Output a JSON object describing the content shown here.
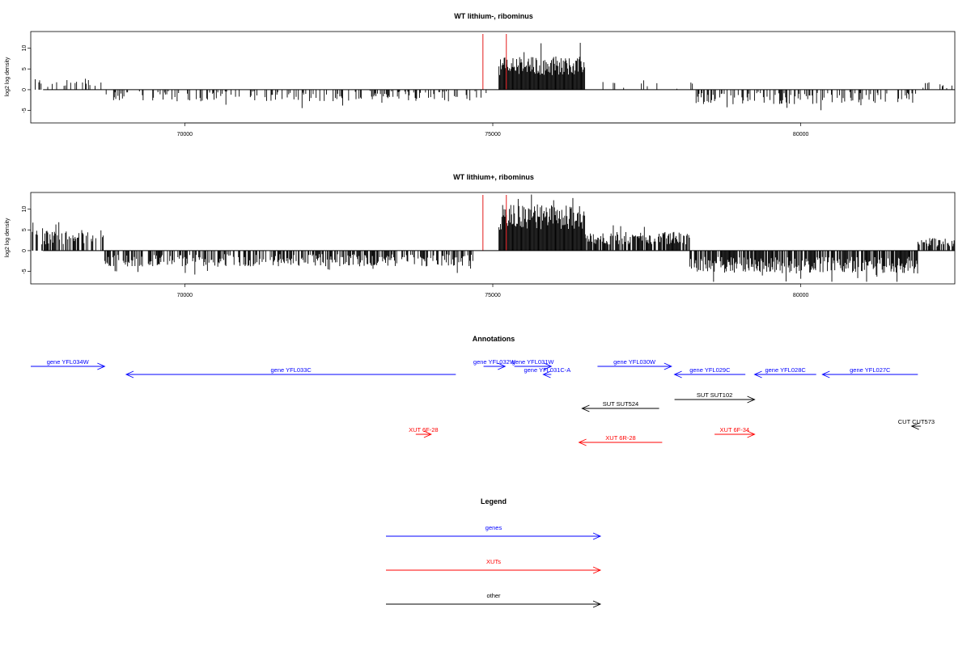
{
  "chart_data": [
    {
      "type": "bar",
      "title": "WT lithium-, ribominus",
      "ylabel": "log2 log density",
      "xlim": [
        67500,
        82500
      ],
      "ylim": [
        -8,
        14
      ],
      "yticks": [
        "-5",
        "0",
        "5",
        "10"
      ],
      "xticks": [
        "70000",
        "75000",
        "80000"
      ],
      "markers_color": "#e41a1c",
      "markers_x": [
        74840,
        75220
      ],
      "profile_segments": [
        {
          "x0": 67500,
          "x1": 68700,
          "base": 0.3,
          "amp": 2.5,
          "sign": 1,
          "density": 0.25
        },
        {
          "x0": 68700,
          "x1": 74900,
          "base": 0.3,
          "amp": 2.5,
          "sign": -1,
          "density": 0.3
        },
        {
          "x0": 75100,
          "x1": 76500,
          "base": 3.5,
          "amp": 4.5,
          "sign": 1,
          "density": 1.0
        },
        {
          "x0": 76500,
          "x1": 78300,
          "base": 0.2,
          "amp": 2.0,
          "sign": 1,
          "density": 0.08
        },
        {
          "x0": 78300,
          "x1": 81900,
          "base": 0.5,
          "amp": 3.0,
          "sign": -1,
          "density": 0.35
        },
        {
          "x0": 81900,
          "x1": 82500,
          "base": 0.3,
          "amp": 1.5,
          "sign": 1,
          "density": 0.15
        }
      ]
    },
    {
      "type": "bar",
      "title": "WT lithium+, ribominus",
      "ylabel": "log2 log density",
      "xlim": [
        67500,
        82500
      ],
      "ylim": [
        -8,
        14
      ],
      "yticks": [
        "-5",
        "0",
        "5",
        "10"
      ],
      "xticks": [
        "70000",
        "75000",
        "80000"
      ],
      "markers_color": "#e41a1c",
      "markers_x": [
        74840,
        75220
      ],
      "profile_segments": [
        {
          "x0": 67500,
          "x1": 68700,
          "base": 1.5,
          "amp": 3.5,
          "sign": 1,
          "density": 0.6
        },
        {
          "x0": 68700,
          "x1": 74700,
          "base": 0.8,
          "amp": 3.0,
          "sign": -1,
          "density": 0.6
        },
        {
          "x0": 75100,
          "x1": 76500,
          "base": 5.0,
          "amp": 6.0,
          "sign": 1,
          "density": 1.0
        },
        {
          "x0": 76500,
          "x1": 78200,
          "base": 1.5,
          "amp": 3.0,
          "sign": 1,
          "density": 0.8
        },
        {
          "x0": 78200,
          "x1": 81900,
          "base": 1.5,
          "amp": 4.0,
          "sign": -1,
          "density": 0.8
        },
        {
          "x0": 81900,
          "x1": 82500,
          "base": 1.0,
          "amp": 2.0,
          "sign": 1,
          "density": 0.6
        }
      ]
    }
  ],
  "annotations": {
    "title": "Annotations",
    "features": [
      {
        "label": "gene YFL034W",
        "color": "#0000ff",
        "start": 67220,
        "end": 68700,
        "dir": "right",
        "row": 0
      },
      {
        "label": "gene YFL033C",
        "color": "#0000ff",
        "start": 69050,
        "end": 74400,
        "dir": "left",
        "row": 1
      },
      {
        "label": "gene YFL032W",
        "color": "#0000ff",
        "start": 74850,
        "end": 75200,
        "dir": "right",
        "row": 0
      },
      {
        "label": "gene YFL031W",
        "color": "#0000ff",
        "start": 75350,
        "end": 75950,
        "dir": "right",
        "row": 0
      },
      {
        "label": "gene YFL031C-A",
        "color": "#0000ff",
        "start": 75820,
        "end": 75950,
        "dir": "left",
        "row": 1
      },
      {
        "label": "gene YFL030W",
        "color": "#0000ff",
        "start": 76700,
        "end": 77900,
        "dir": "right",
        "row": 0
      },
      {
        "label": "gene YFL029C",
        "color": "#0000ff",
        "start": 77950,
        "end": 79100,
        "dir": "left",
        "row": 1
      },
      {
        "label": "gene YFL028C",
        "color": "#0000ff",
        "start": 79250,
        "end": 80250,
        "dir": "left",
        "row": 1
      },
      {
        "label": "gene YFL027C",
        "color": "#0000ff",
        "start": 80350,
        "end": 81900,
        "dir": "left",
        "row": 1
      },
      {
        "label": "SUT SUT524",
        "color": "#000000",
        "start": 76450,
        "end": 77700,
        "dir": "left",
        "row": 3
      },
      {
        "label": "SUT SUT102",
        "color": "#000000",
        "start": 77950,
        "end": 79250,
        "dir": "right",
        "row": 2
      },
      {
        "label": "CUT CUT573",
        "color": "#000000",
        "start": 81800,
        "end": 81950,
        "dir": "left",
        "row": 4
      },
      {
        "label": "XUT 6F-28",
        "color": "#ff0000",
        "start": 73750,
        "end": 74000,
        "dir": "right",
        "row": 5
      },
      {
        "label": "XUT 6R-28",
        "color": "#ff0000",
        "start": 76400,
        "end": 77750,
        "dir": "left",
        "row": 6
      },
      {
        "label": "XUT 6F-34",
        "color": "#ff0000",
        "start": 78600,
        "end": 79250,
        "dir": "right",
        "row": 5
      }
    ]
  },
  "legend": {
    "title": "Legend",
    "items": [
      {
        "label": "genes",
        "color": "#0000ff"
      },
      {
        "label": "XUTs",
        "color": "#ff0000"
      },
      {
        "label": "other",
        "color": "#000000"
      }
    ]
  }
}
